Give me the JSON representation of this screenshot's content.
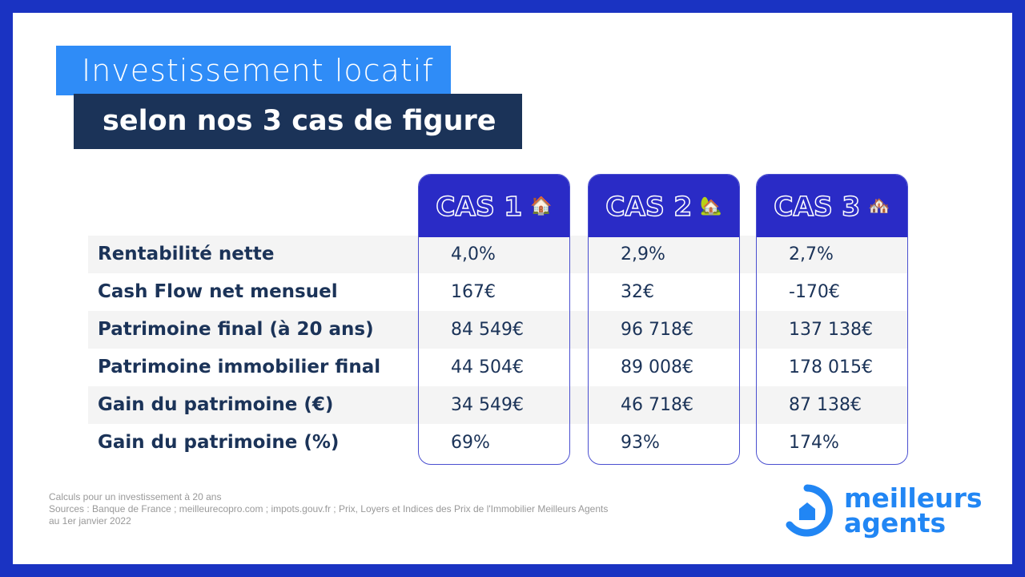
{
  "title": {
    "line1": "Investissement locatif",
    "line2": "selon nos 3 cas de figure"
  },
  "cases": [
    {
      "label": "CAS 1",
      "icon": "🏠"
    },
    {
      "label": "CAS 2",
      "icon": "🏡"
    },
    {
      "label": "CAS 3",
      "icon": "🏘️"
    }
  ],
  "rows": [
    {
      "label": "Rentabilité nette",
      "values": [
        "4,0%",
        "2,9%",
        "2,7%"
      ]
    },
    {
      "label": "Cash Flow net mensuel",
      "values": [
        "167€",
        "32€",
        "-170€"
      ]
    },
    {
      "label": "Patrimoine final (à 20 ans)",
      "values": [
        "84 549€",
        "96 718€",
        "137 138€"
      ]
    },
    {
      "label": "Patrimoine immobilier final",
      "values": [
        "44 504€",
        "89 008€",
        "178 015€"
      ]
    },
    {
      "label": "Gain du patrimoine (€)",
      "values": [
        "34 549€",
        "46 718€",
        "87 138€"
      ]
    },
    {
      "label": "Gain du patrimoine (%)",
      "values": [
        "69%",
        "93%",
        "174%"
      ]
    }
  ],
  "footer": [
    "Calculs pour un investissement à 20 ans",
    "Sources : Banque de France ; meilleurecopro.com ; impots.gouv.fr ; Prix, Loyers et Indices des Prix de l'Immobilier Meilleurs Agents",
    "au 1er janvier 2022"
  ],
  "logo": {
    "line1": "meilleurs",
    "line2": "agents"
  }
}
